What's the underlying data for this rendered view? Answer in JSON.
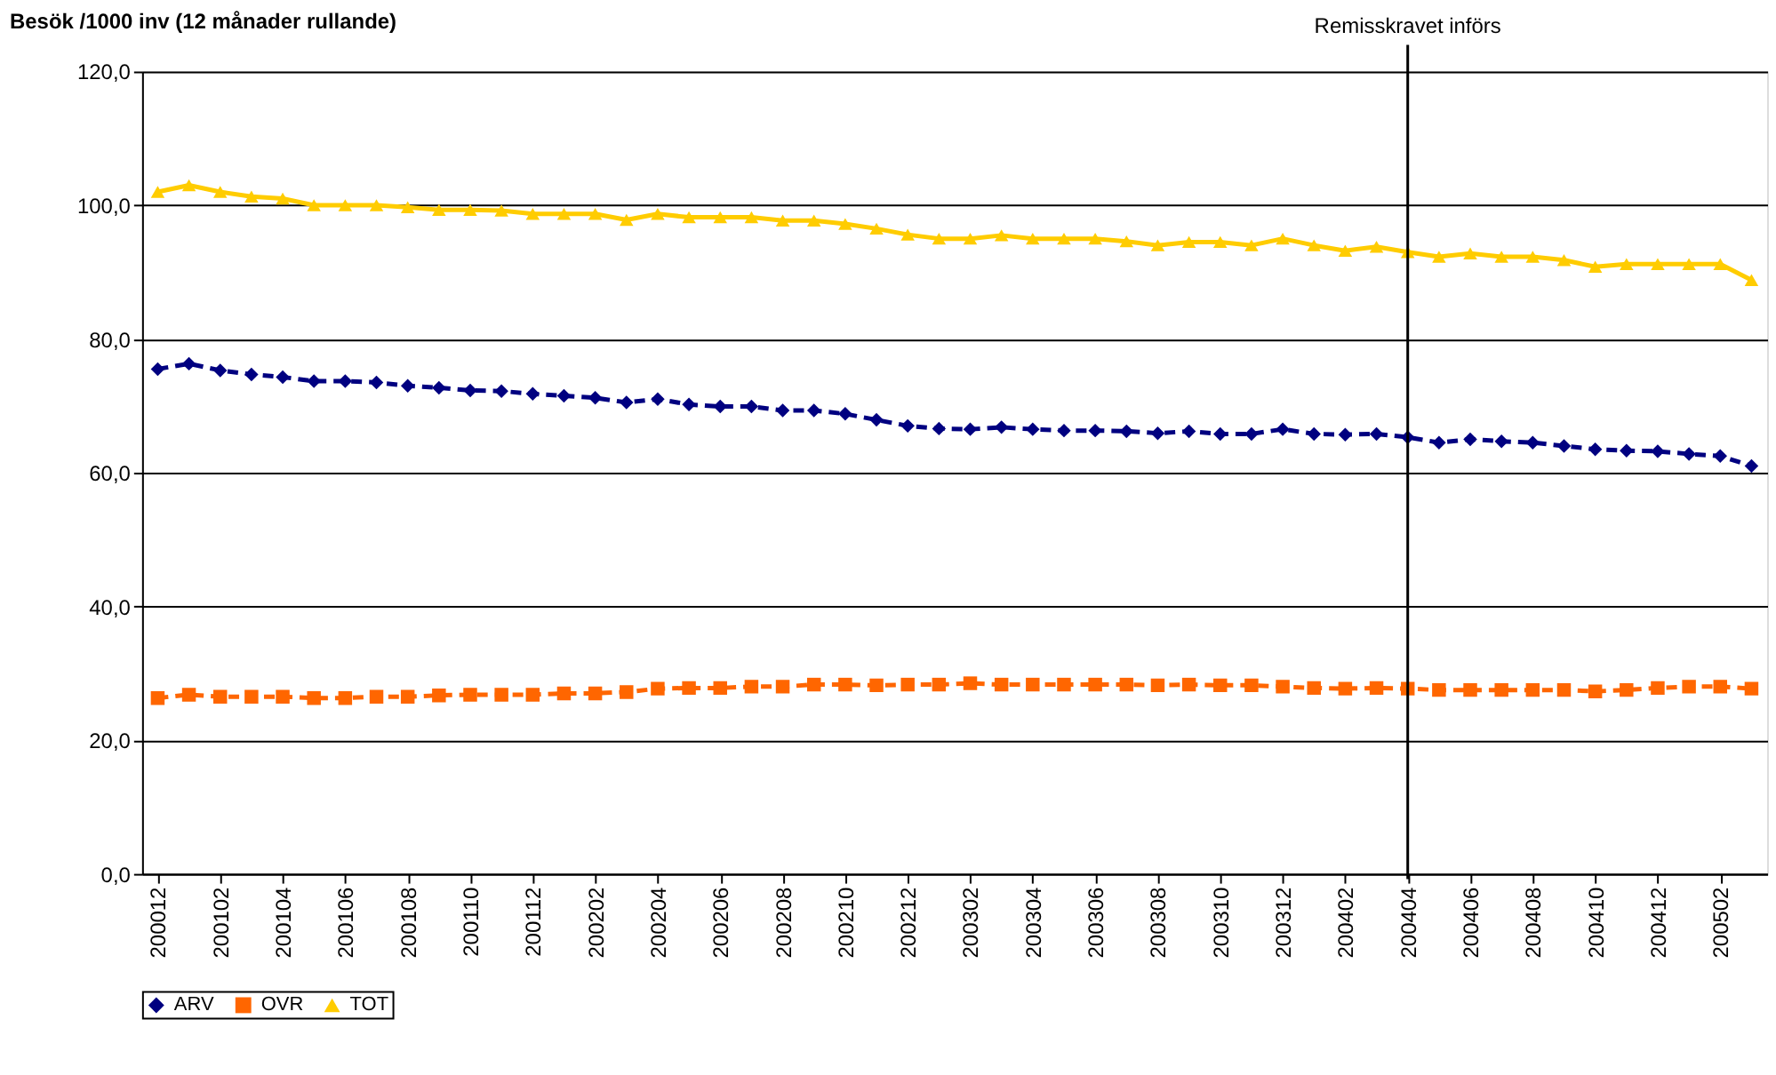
{
  "chart_data": {
    "type": "line",
    "ylabel": "Besök /1000 inv (12 månader rullande)",
    "categories": [
      "200012",
      null,
      "200102",
      null,
      "200104",
      null,
      "200106",
      null,
      "200108",
      null,
      "200110",
      null,
      "200112",
      null,
      "200202",
      null,
      "200204",
      null,
      "200206",
      null,
      "200208",
      null,
      "200210",
      null,
      "200212",
      null,
      "200302",
      null,
      "200304",
      null,
      "200306",
      null,
      "200308",
      null,
      "200310",
      null,
      "200312",
      null,
      "200402",
      null,
      "200404",
      null,
      "200406",
      null,
      "200408",
      null,
      "200410",
      null,
      "200412",
      null,
      "200502",
      null
    ],
    "series": [
      {
        "name": "ARV",
        "color": "#000080",
        "marker": "diamond",
        "line_style": "dashed",
        "values": [
          75.5,
          76.3,
          75.3,
          74.7,
          74.3,
          73.7,
          73.7,
          73.5,
          73,
          72.7,
          72.3,
          72.2,
          71.8,
          71.5,
          71.2,
          70.5,
          71,
          70.2,
          69.9,
          69.9,
          69.3,
          69.3,
          68.8,
          67.9,
          67,
          66.6,
          66.5,
          66.8,
          66.5,
          66.3,
          66.3,
          66.2,
          65.9,
          66.2,
          65.8,
          65.8,
          66.5,
          65.8,
          65.7,
          65.8,
          65.3,
          64.5,
          65,
          64.7,
          64.5,
          64,
          63.5,
          63.3,
          63.2,
          62.8,
          62.5,
          61
        ]
      },
      {
        "name": "OVR",
        "color": "#ff6600",
        "marker": "square",
        "line_style": "dashed",
        "values": [
          26.3,
          26.8,
          26.5,
          26.5,
          26.5,
          26.3,
          26.3,
          26.5,
          26.5,
          26.7,
          26.8,
          26.8,
          26.8,
          27,
          27,
          27.2,
          27.7,
          27.8,
          27.8,
          28,
          28,
          28.3,
          28.3,
          28.2,
          28.3,
          28.3,
          28.5,
          28.3,
          28.3,
          28.3,
          28.3,
          28.3,
          28.2,
          28.3,
          28.2,
          28.2,
          28,
          27.8,
          27.7,
          27.8,
          27.7,
          27.5,
          27.5,
          27.5,
          27.5,
          27.5,
          27.3,
          27.5,
          27.8,
          28,
          28,
          27.7
        ]
      },
      {
        "name": "TOT",
        "color": "#ffcc00",
        "marker": "triangle",
        "line_style": "solid",
        "values": [
          102,
          103,
          102,
          101.3,
          101,
          100,
          100,
          100,
          99.7,
          99.3,
          99.3,
          99.2,
          98.7,
          98.7,
          98.7,
          97.8,
          98.7,
          98.2,
          98.2,
          98.2,
          97.7,
          97.7,
          97.2,
          96.5,
          95.6,
          95,
          95,
          95.5,
          95,
          95,
          95,
          94.6,
          94,
          94.5,
          94.5,
          94,
          95,
          94,
          93.2,
          93.8,
          93,
          92.3,
          92.8,
          92.3,
          92.3,
          91.8,
          90.8,
          91.2,
          91.2,
          91.2,
          91.2,
          88.8
        ]
      }
    ],
    "ylim": [
      0,
      120
    ],
    "yticks": [
      {
        "value": 0,
        "label": "0,0"
      },
      {
        "value": 20,
        "label": "20,0"
      },
      {
        "value": 40,
        "label": "40,0"
      },
      {
        "value": 60,
        "label": "60,0"
      },
      {
        "value": 80,
        "label": "80,0"
      },
      {
        "value": 100,
        "label": "100,0"
      },
      {
        "value": 120,
        "label": "120,0"
      }
    ],
    "grid": "y",
    "legend": "bottom",
    "ref_lines": [
      {
        "axis": "x",
        "value": "200404",
        "label": "Remisskravet införs",
        "color": "#000000"
      }
    ]
  }
}
